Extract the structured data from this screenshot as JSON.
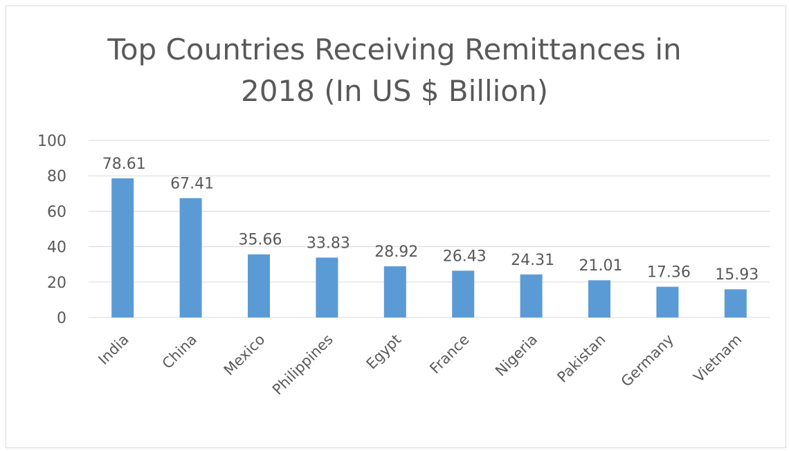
{
  "chart_data": {
    "type": "bar",
    "title_line1": "Top Countries Receiving Remittances in",
    "title_line2": "2018 (In US $ Billion)",
    "categories": [
      "India",
      "China",
      "Mexico",
      "Philippines",
      "Egypt",
      "France",
      "Nigeria",
      "Pakistan",
      "Germany",
      "Vietnam"
    ],
    "values": [
      78.61,
      67.41,
      35.66,
      33.83,
      28.92,
      26.43,
      24.31,
      21.01,
      17.36,
      15.93
    ],
    "data_labels": [
      "78.61",
      "67.41",
      "35.66",
      "33.83",
      "28.92",
      "26.43",
      "24.31",
      "21.01",
      "17.36",
      "15.93"
    ],
    "yticks": [
      "0",
      "20",
      "40",
      "60",
      "80",
      "100"
    ],
    "ylim": [
      0,
      100
    ],
    "grid": true,
    "legend": "none",
    "colors": {
      "bar": "#5b9bd5",
      "grid": "#d9d9d9",
      "text": "#595959"
    }
  }
}
